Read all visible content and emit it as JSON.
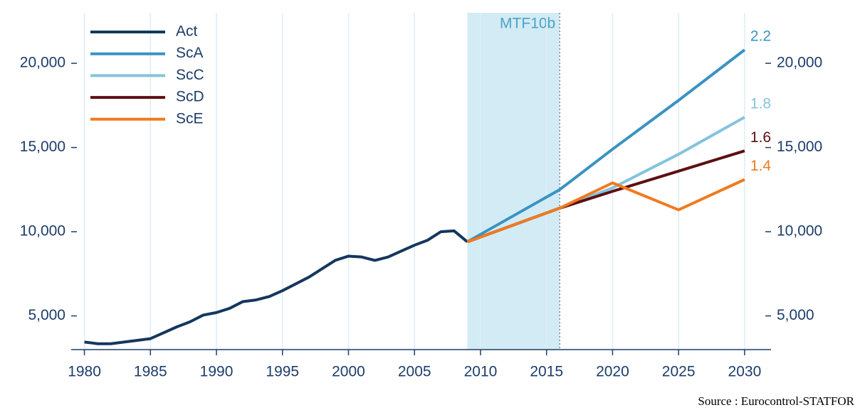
{
  "chart_data": {
    "type": "line",
    "xlim": [
      1979,
      2032
    ],
    "xticks": [
      1980,
      1985,
      1990,
      1995,
      2000,
      2005,
      2010,
      2015,
      2020,
      2025,
      2030
    ],
    "ylim": [
      3000,
      23000
    ],
    "yticks": [
      {
        "value": 5000,
        "label": "5,000"
      },
      {
        "value": 10000,
        "label": "10,000"
      },
      {
        "value": 15000,
        "label": "15,000"
      },
      {
        "value": 20000,
        "label": "20,000"
      }
    ],
    "y2lim": [
      3000,
      23000
    ],
    "y2ticks": [
      {
        "value": 5000,
        "label": "5,000"
      },
      {
        "value": 10000,
        "label": "10,000"
      },
      {
        "value": 15000,
        "label": "15,000"
      },
      {
        "value": 20000,
        "label": "20,000"
      }
    ],
    "grid": true,
    "legend": "top-left",
    "shaded_region": {
      "x": [
        2009,
        2016
      ],
      "label": "MTF10b",
      "color": "#d3ebf4"
    },
    "series": [
      {
        "name": "Act",
        "color": "#14375e",
        "x": [
          1980,
          1981,
          1982,
          1983,
          1984,
          1985,
          1986,
          1987,
          1988,
          1989,
          1990,
          1991,
          1992,
          1993,
          1994,
          1995,
          1996,
          1997,
          1998,
          1999,
          2000,
          2001,
          2002,
          2003,
          2004,
          2005,
          2006,
          2007,
          2008,
          2009
        ],
        "values": [
          3450,
          3350,
          3350,
          3450,
          3550,
          3650,
          4000,
          4350,
          4650,
          5050,
          5200,
          5450,
          5850,
          5950,
          6150,
          6500,
          6900,
          7300,
          7800,
          8300,
          8550,
          8500,
          8300,
          8500,
          8850,
          9200,
          9500,
          10000,
          10050,
          9400
        ]
      },
      {
        "name": "ScA",
        "color": "#3a93c3",
        "x": [
          2009,
          2016,
          2020,
          2025,
          2030
        ],
        "values": [
          9400,
          12500,
          14900,
          17800,
          20800
        ],
        "end_label": "2.2"
      },
      {
        "name": "ScC",
        "color": "#85c3dc",
        "x": [
          2009,
          2016,
          2020,
          2025,
          2030
        ],
        "values": [
          9400,
          11400,
          12600,
          14600,
          16800
        ],
        "end_label": "1.8"
      },
      {
        "name": "ScD",
        "color": "#5c0f14",
        "x": [
          2009,
          2016,
          2020,
          2025,
          2030
        ],
        "values": [
          9400,
          11400,
          12400,
          13600,
          14800
        ],
        "end_label": "1.6"
      },
      {
        "name": "ScE",
        "color": "#f07a1f",
        "x": [
          2009,
          2016,
          2020,
          2025,
          2030
        ],
        "values": [
          9400,
          11400,
          12900,
          11300,
          13100
        ],
        "end_label": "1.4"
      }
    ],
    "source": "Source : Eurocontrol-STATFOR"
  }
}
